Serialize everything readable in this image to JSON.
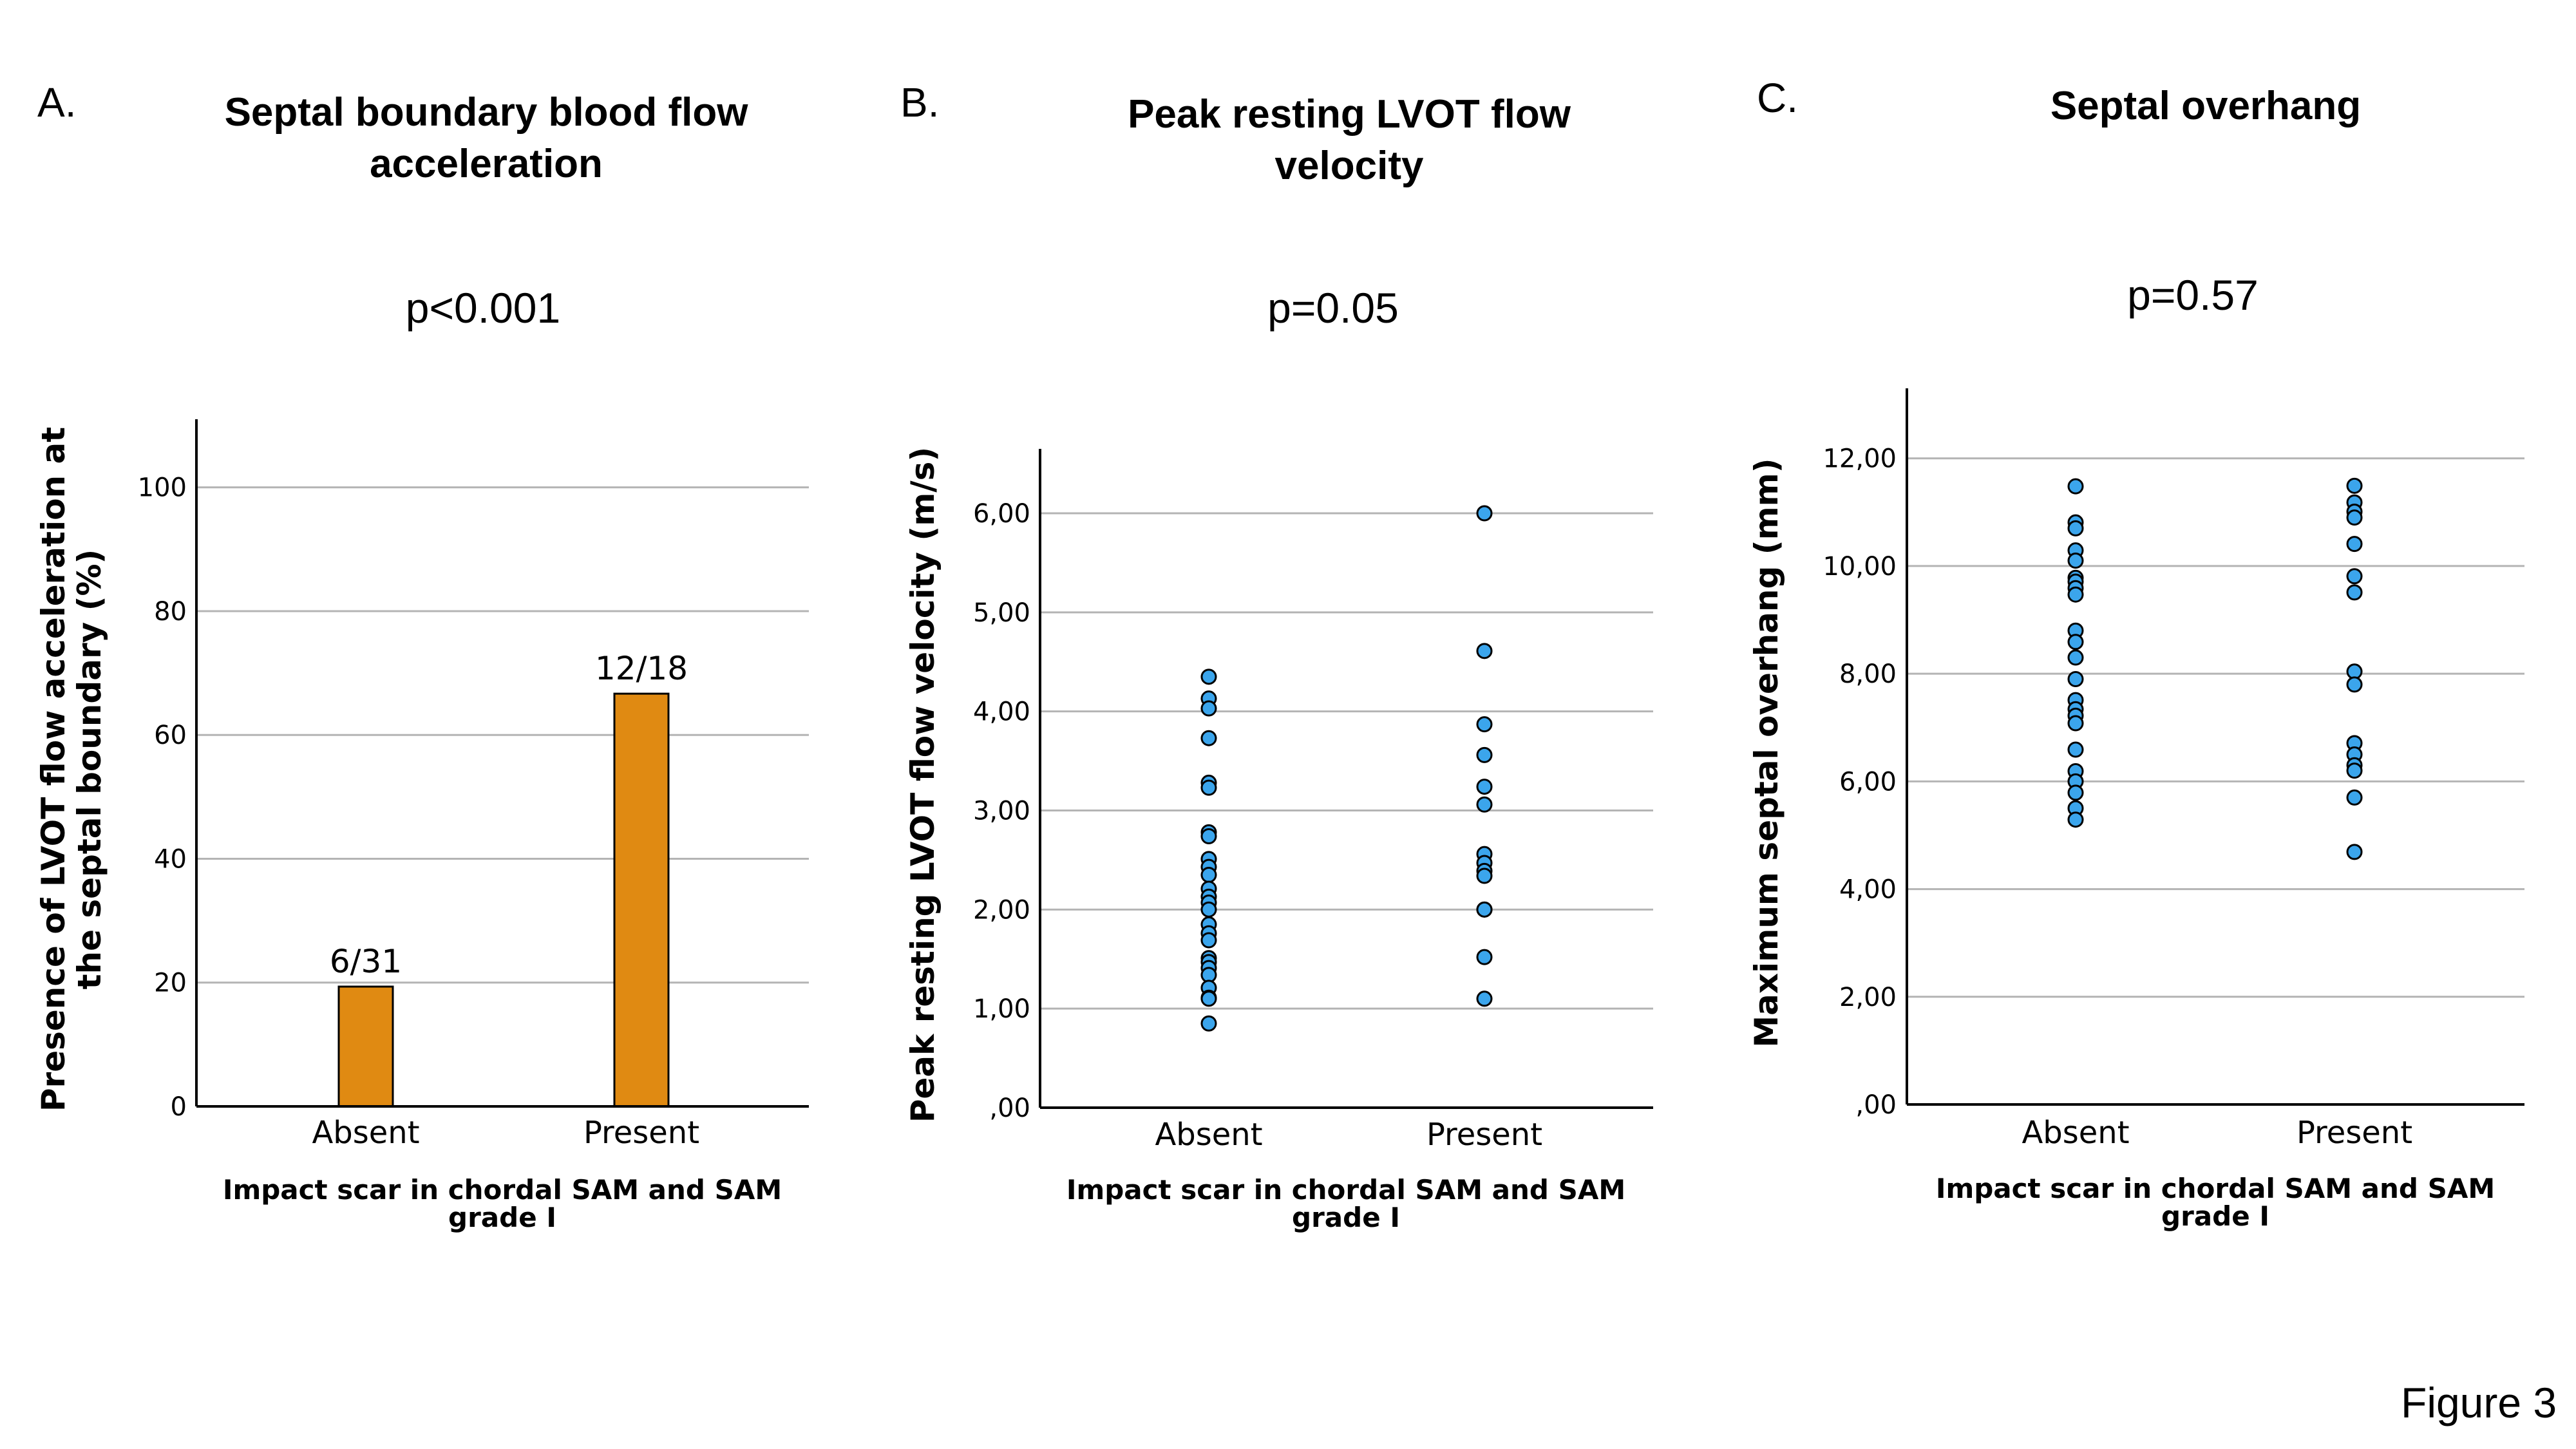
{
  "figure_label": "Figure 3",
  "panels": [
    {
      "letter": "A.",
      "title_lines": [
        "Septal boundary blood flow",
        "acceleration"
      ],
      "pvalue": "p<0.001"
    },
    {
      "letter": "B.",
      "title_lines": [
        "Peak resting LVOT flow",
        "velocity"
      ],
      "pvalue": "p=0.05"
    },
    {
      "letter": "C.",
      "title_lines": [
        "Septal overhang"
      ],
      "pvalue": "p=0.57"
    }
  ],
  "colors": {
    "bar_fill": "#E08A12",
    "point_fill": "#3BA5EC",
    "outline": "#000000",
    "grid": "#B4B4B4"
  },
  "chart_data": [
    {
      "type": "bar",
      "title": "Septal boundary blood flow acceleration",
      "categories": [
        "Absent",
        "Present"
      ],
      "values": [
        19.35,
        66.67
      ],
      "data_labels": [
        "6/31",
        "12/18"
      ],
      "xlabel_lines": [
        "Impact scar in chordal SAM and SAM",
        "grade I"
      ],
      "ylabel_lines": [
        "Presence of LVOT flow acceleration at",
        "the septal boundary (%)"
      ],
      "ylim": [
        0,
        111
      ],
      "yticks": [
        0,
        20,
        40,
        60,
        80,
        100
      ],
      "ytick_labels": [
        "0",
        "20",
        "40",
        "60",
        "80",
        "100"
      ],
      "grid": true
    },
    {
      "type": "scatter",
      "title": "Peak resting LVOT flow velocity",
      "categories": [
        "Absent",
        "Present"
      ],
      "series": [
        {
          "name": "Absent",
          "values": [
            4.35,
            4.13,
            4.03,
            3.73,
            3.28,
            3.23,
            2.78,
            2.74,
            2.51,
            2.43,
            2.35,
            2.21,
            2.13,
            2.07,
            2.0,
            1.85,
            1.76,
            1.69,
            1.51,
            1.47,
            1.41,
            1.34,
            1.21,
            1.11,
            1.1,
            0.85
          ]
        },
        {
          "name": "Present",
          "values": [
            6.0,
            4.61,
            3.87,
            3.56,
            3.24,
            3.06,
            2.56,
            2.47,
            2.39,
            2.34,
            2.0,
            2.0,
            1.52,
            1.1
          ]
        }
      ],
      "xlabel_lines": [
        "Impact scar in chordal SAM and SAM",
        "grade I"
      ],
      "ylabel_lines": [
        "Peak resting LVOT flow velocity (m/s)"
      ],
      "ylim": [
        0,
        6.65
      ],
      "yticks": [
        0,
        1,
        2,
        3,
        4,
        5,
        6
      ],
      "ytick_labels": [
        ",00",
        "1,00",
        "2,00",
        "3,00",
        "4,00",
        "5,00",
        "6,00"
      ],
      "grid": true
    },
    {
      "type": "scatter",
      "title": "Septal overhang",
      "categories": [
        "Absent",
        "Present"
      ],
      "series": [
        {
          "name": "Absent",
          "values": [
            11.48,
            10.81,
            10.7,
            10.29,
            10.1,
            9.78,
            9.71,
            9.59,
            9.47,
            8.8,
            8.59,
            8.3,
            7.9,
            7.51,
            7.34,
            7.22,
            7.08,
            6.59,
            6.19,
            6.0,
            5.79,
            5.5,
            5.29
          ]
        },
        {
          "name": "Present",
          "values": [
            11.49,
            11.18,
            11.01,
            10.9,
            10.41,
            9.81,
            9.51,
            8.04,
            7.8,
            6.71,
            6.5,
            6.3,
            6.2,
            5.7,
            4.69
          ]
        }
      ],
      "xlabel_lines": [
        "Impact scar in chordal SAM and SAM",
        "grade I"
      ],
      "ylabel_lines": [
        "Maximum septal overhang (mm)"
      ],
      "ylim": [
        0,
        13.3
      ],
      "yticks": [
        0,
        2,
        4,
        6,
        8,
        10,
        12
      ],
      "ytick_labels": [
        ",00",
        "2,00",
        "4,00",
        "6,00",
        "8,00",
        "10,00",
        "12,00"
      ],
      "grid": true
    }
  ]
}
